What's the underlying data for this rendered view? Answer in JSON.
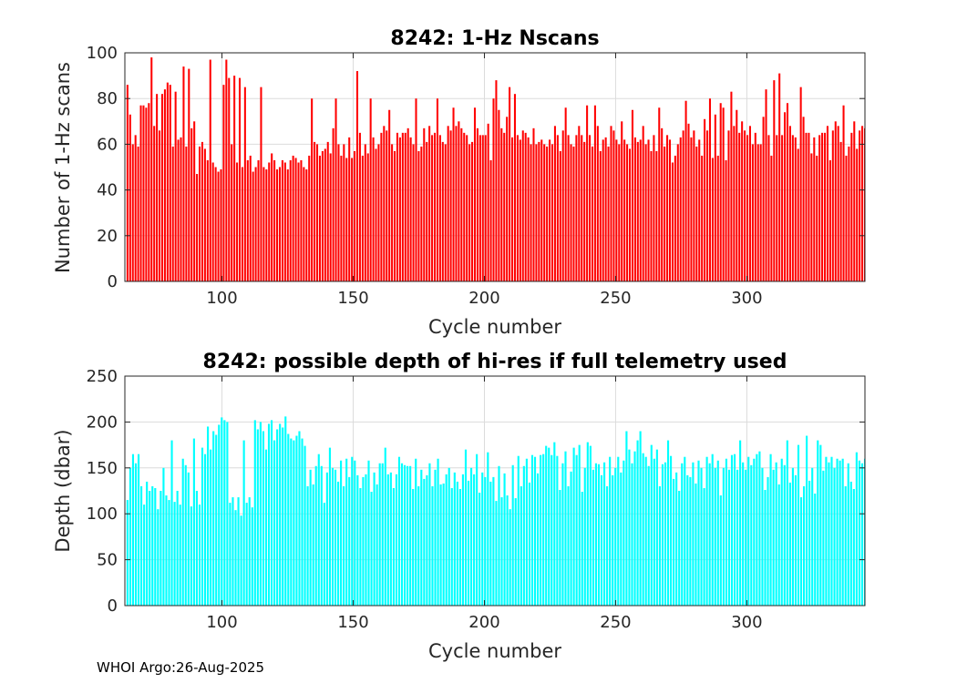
{
  "footer": "WHOI Argo:26-Aug-2025",
  "chart_data": [
    {
      "type": "bar",
      "title": "8242: 1-Hz Nscans",
      "xlabel": "Cycle number",
      "ylabel": "Number of 1-Hz scans",
      "xlim": [
        63,
        345
      ],
      "ylim": [
        0,
        100
      ],
      "xticks": [
        100,
        150,
        200,
        250,
        300
      ],
      "yticks": [
        0,
        20,
        40,
        60,
        80,
        100
      ],
      "grid": true,
      "color": "#ff0000",
      "x_start": 64,
      "x_end": 345,
      "values": [
        86,
        73,
        60,
        64,
        59,
        77,
        77,
        76,
        78,
        98,
        68,
        82,
        66,
        82,
        84,
        87,
        86,
        59,
        83,
        62,
        63,
        94,
        59,
        93,
        67,
        70,
        47,
        59,
        61,
        58,
        53,
        97,
        52,
        50,
        48,
        49,
        86,
        97,
        89,
        60,
        90,
        52,
        89,
        50,
        85,
        53,
        55,
        48,
        50,
        53,
        85,
        50,
        49,
        52,
        56,
        53,
        49,
        50,
        53,
        52,
        49,
        53,
        55,
        54,
        52,
        53,
        50,
        49,
        55,
        80,
        61,
        60,
        55,
        57,
        58,
        61,
        56,
        67,
        80,
        60,
        55,
        60,
        54,
        63,
        54,
        57,
        92,
        65,
        55,
        60,
        56,
        80,
        63,
        58,
        60,
        65,
        68,
        66,
        75,
        60,
        57,
        65,
        63,
        65,
        65,
        67,
        63,
        60,
        80,
        57,
        59,
        67,
        61,
        68,
        64,
        65,
        80,
        64,
        61,
        60,
        68,
        66,
        76,
        68,
        70,
        67,
        65,
        64,
        60,
        61,
        76,
        67,
        64,
        64,
        64,
        69,
        53,
        80,
        88,
        75,
        67,
        65,
        72,
        85,
        63,
        82,
        64,
        62,
        66,
        65,
        63,
        60,
        67,
        60,
        61,
        62,
        60,
        59,
        62,
        60,
        68,
        64,
        57,
        66,
        76,
        64,
        60,
        59,
        64,
        68,
        64,
        61,
        77,
        64,
        59,
        77,
        68,
        57,
        62,
        63,
        59,
        68,
        66,
        62,
        60,
        70,
        62,
        60,
        58,
        75,
        63,
        61,
        62,
        68,
        60,
        62,
        57,
        64,
        57,
        76,
        67,
        59,
        64,
        62,
        52,
        55,
        60,
        63,
        66,
        79,
        69,
        63,
        66,
        59,
        62,
        55,
        71,
        66,
        80,
        54,
        73,
        55,
        78,
        76,
        53,
        66,
        83,
        68,
        75,
        65,
        70,
        66,
        64,
        68,
        60,
        65,
        60,
        60,
        72,
        84,
        64,
        55,
        88,
        64,
        91,
        64,
        74,
        78,
        68,
        64,
        63,
        58,
        85,
        72,
        65,
        65,
        56,
        63,
        55,
        64,
        65,
        65,
        68,
        53,
        66,
        70,
        68,
        61,
        77,
        55,
        59,
        65,
        70,
        58,
        66,
        68,
        67
      ]
    },
    {
      "type": "bar",
      "title": "8242: possible depth of hi-res if full telemetry used",
      "xlabel": "Cycle number",
      "ylabel": "Depth (dbar)",
      "xlim": [
        63,
        345
      ],
      "ylim": [
        0,
        250
      ],
      "xticks": [
        100,
        150,
        200,
        250,
        300
      ],
      "yticks": [
        0,
        50,
        100,
        150,
        200,
        250
      ],
      "grid": true,
      "color": "#00ffff",
      "x_start": 64,
      "x_end": 345,
      "values": [
        115,
        150,
        165,
        155,
        165,
        130,
        110,
        135,
        125,
        130,
        128,
        105,
        125,
        150,
        120,
        115,
        180,
        113,
        125,
        110,
        160,
        153,
        145,
        108,
        182,
        125,
        110,
        172,
        165,
        195,
        170,
        190,
        186,
        197,
        205,
        202,
        200,
        112,
        118,
        104,
        118,
        98,
        180,
        112,
        118,
        107,
        202,
        192,
        200,
        190,
        170,
        198,
        202,
        180,
        192,
        198,
        194,
        206,
        187,
        182,
        180,
        185,
        190,
        182,
        174,
        130,
        148,
        132,
        152,
        165,
        152,
        112,
        145,
        172,
        150,
        148,
        135,
        158,
        130,
        160,
        140,
        162,
        158,
        142,
        128,
        140,
        143,
        158,
        124,
        145,
        132,
        155,
        155,
        172,
        143,
        145,
        128,
        143,
        162,
        155,
        153,
        152,
        152,
        127,
        160,
        130,
        148,
        138,
        142,
        155,
        130,
        148,
        160,
        132,
        133,
        143,
        150,
        128,
        145,
        135,
        127,
        143,
        170,
        136,
        150,
        143,
        165,
        123,
        145,
        140,
        167,
        135,
        140,
        114,
        152,
        118,
        144,
        120,
        105,
        153,
        117,
        163,
        130,
        152,
        160,
        134,
        164,
        162,
        144,
        164,
        165,
        174,
        172,
        164,
        178,
        163,
        126,
        155,
        168,
        130,
        146,
        172,
        164,
        175,
        124,
        150,
        178,
        174,
        148,
        155,
        154,
        142,
        156,
        130,
        162,
        142,
        150,
        162,
        145,
        158,
        190,
        170,
        155,
        168,
        180,
        190,
        166,
        162,
        152,
        175,
        160,
        170,
        130,
        154,
        156,
        180,
        163,
        138,
        145,
        125,
        155,
        162,
        142,
        140,
        156,
        133,
        158,
        150,
        128,
        162,
        155,
        165,
        150,
        158,
        120,
        150,
        160,
        148,
        164,
        165,
        148,
        180,
        156,
        148,
        162,
        153,
        160,
        165,
        168,
        150,
        126,
        140,
        165,
        148,
        156,
        132,
        160,
        153,
        180,
        134,
        150,
        142,
        175,
        118,
        130,
        185,
        136,
        150,
        122,
        180,
        175,
        147,
        162,
        156,
        162,
        150,
        160,
        158,
        160,
        130,
        155,
        135,
        127,
        167,
        158,
        155,
        160
      ]
    }
  ]
}
